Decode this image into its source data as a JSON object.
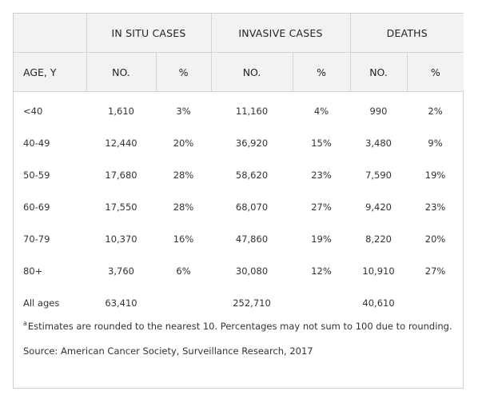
{
  "table": {
    "groups": [
      "IN SITU CASES",
      "INVASIVE CASES",
      "DEATHS"
    ],
    "subheaders": [
      "AGE, Y",
      "NO.",
      "%",
      "NO.",
      "%",
      "NO.",
      "%"
    ],
    "rows": [
      [
        "<40",
        "1,610",
        "3%",
        "11,160",
        "4%",
        "990",
        "2%"
      ],
      [
        "40-49",
        "12,440",
        "20%",
        "36,920",
        "15%",
        "3,480",
        "9%"
      ],
      [
        "50-59",
        "17,680",
        "28%",
        "58,620",
        "23%",
        "7,590",
        "19%"
      ],
      [
        "60-69",
        "17,550",
        "28%",
        "68,070",
        "27%",
        "9,420",
        "23%"
      ],
      [
        "70-79",
        "10,370",
        "16%",
        "47,860",
        "19%",
        "8,220",
        "20%"
      ],
      [
        "80+",
        "3,760",
        "6%",
        "30,080",
        "12%",
        "10,910",
        "27%"
      ],
      [
        "All ages",
        "63,410",
        "",
        "252,710",
        "",
        "40,610",
        ""
      ]
    ]
  },
  "footnote": {
    "marker": "a",
    "text": "Estimates are rounded to the nearest 10. Percentages may not sum to 100 due to rounding."
  },
  "source": "Source: American Cancer Society, Surveillance Research, 2017"
}
